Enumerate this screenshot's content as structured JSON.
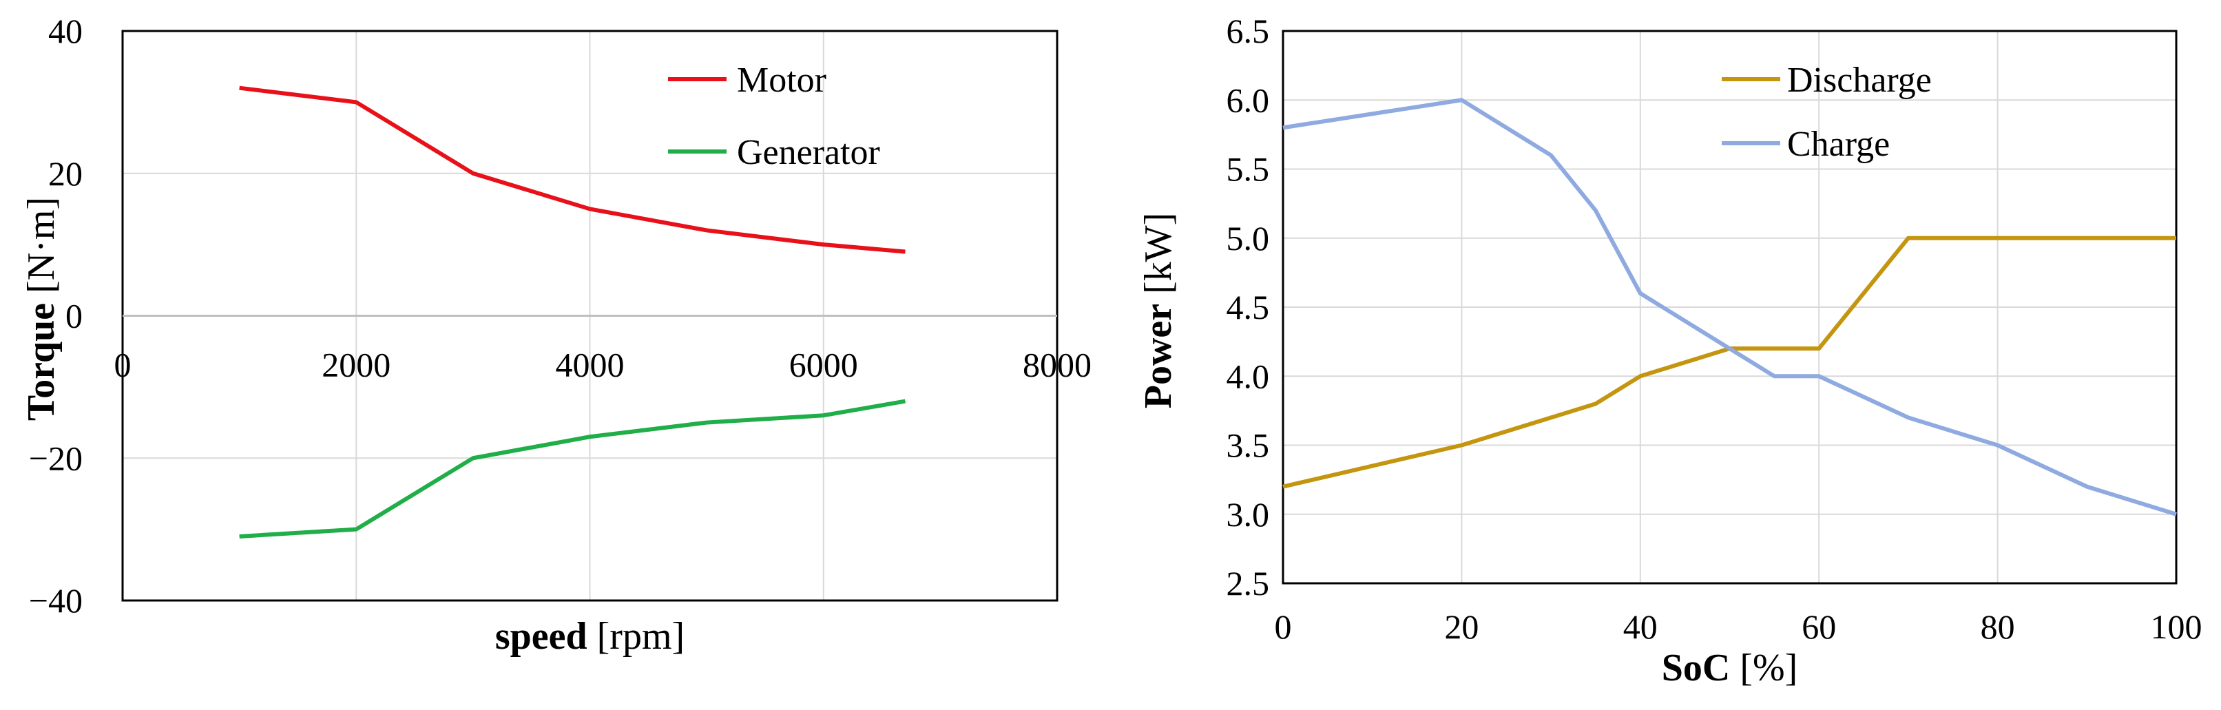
{
  "chart_data": [
    {
      "type": "line",
      "xlabel_bold": "speed",
      "xlabel_unit": "[rpm]",
      "ylabel_bold": "Torque",
      "ylabel_unit": "[N·m]",
      "xlim": [
        0,
        8000
      ],
      "ylim": [
        -40,
        40
      ],
      "xticks": [
        "0",
        "2000",
        "4000",
        "6000",
        "8000"
      ],
      "yticks": [
        "40",
        "20",
        "0",
        "−20",
        "−40"
      ],
      "xtick_values": [
        0,
        2000,
        4000,
        6000,
        8000
      ],
      "ytick_values": [
        40,
        20,
        0,
        -20,
        -40
      ],
      "grid": true,
      "legend_position": "top-right",
      "series": [
        {
          "name": "Motor",
          "color": "#e8111a",
          "x": [
            1000,
            2000,
            3000,
            4000,
            5000,
            6000,
            6700
          ],
          "y": [
            32,
            30,
            20,
            15,
            12,
            10,
            9
          ]
        },
        {
          "name": "Generator",
          "color": "#1fae48",
          "x": [
            1000,
            2000,
            3000,
            4000,
            5000,
            6000,
            6700
          ],
          "y": [
            -31,
            -30,
            -20,
            -17,
            -15,
            -14,
            -12
          ]
        }
      ]
    },
    {
      "type": "line",
      "xlabel_bold": "SoC",
      "xlabel_unit": "[%]",
      "ylabel_bold": "Power",
      "ylabel_unit": "[kW]",
      "xlim": [
        0,
        100
      ],
      "ylim": [
        2.5,
        6.5
      ],
      "xticks": [
        "0",
        "20",
        "40",
        "60",
        "80",
        "100"
      ],
      "yticks": [
        "6.5",
        "6.0",
        "5.5",
        "5.0",
        "4.5",
        "4.0",
        "3.5",
        "3.0",
        "2.5"
      ],
      "xtick_values": [
        0,
        20,
        40,
        60,
        80,
        100
      ],
      "ytick_values": [
        6.5,
        6.0,
        5.5,
        5.0,
        4.5,
        4.0,
        3.5,
        3.0,
        2.5
      ],
      "grid": true,
      "legend_position": "top-center",
      "series": [
        {
          "name": "Discharge",
          "color": "#c4950f",
          "x": [
            0,
            20,
            30,
            35,
            40,
            50,
            60,
            70,
            80,
            90,
            100
          ],
          "y": [
            3.2,
            3.5,
            3.7,
            3.8,
            4.0,
            4.2,
            4.2,
            5.0,
            5.0,
            5.0,
            5.0
          ]
        },
        {
          "name": "Charge",
          "color": "#8eaae0",
          "x": [
            0,
            20,
            30,
            35,
            40,
            50,
            55,
            60,
            70,
            80,
            90,
            100
          ],
          "y": [
            5.8,
            6.0,
            5.6,
            5.2,
            4.6,
            4.2,
            4.0,
            4.0,
            3.7,
            3.5,
            3.2,
            3.0
          ]
        }
      ]
    }
  ]
}
